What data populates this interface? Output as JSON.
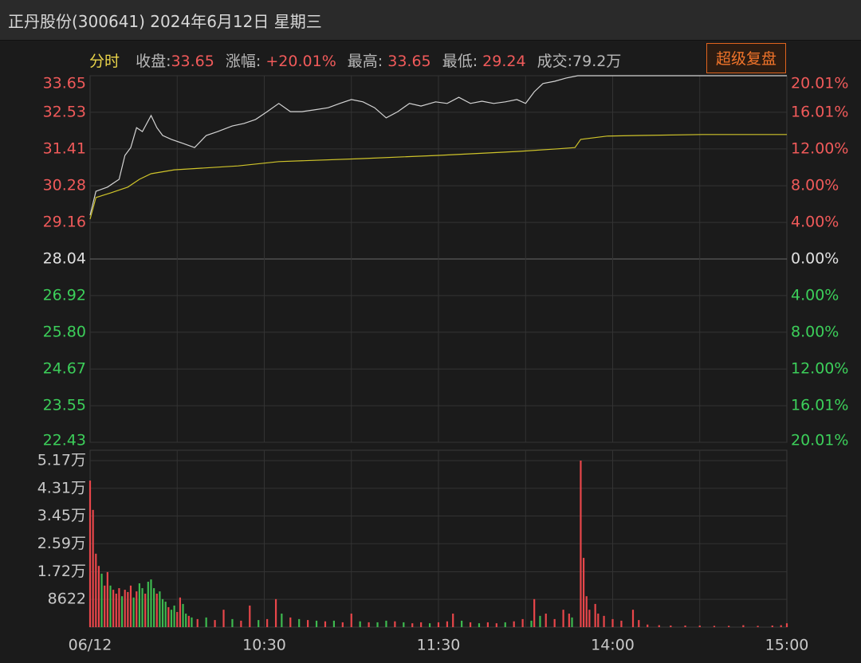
{
  "header": {
    "title": "正丹股份(300641) 2024年6月12日 星期三",
    "mode": "分时",
    "close_label": "收盘:",
    "close": 33.65,
    "change_label": "涨幅:",
    "change": "+20.01%",
    "high_label": "最高:",
    "high": 33.65,
    "low_label": "最低:",
    "low": 29.24,
    "volume_label": "成交:",
    "volume": "79.2万",
    "button": "超级复盘"
  },
  "chart_data": [
    {
      "type": "line",
      "xlim": [
        0,
        240
      ],
      "ylim": [
        22.43,
        33.65
      ],
      "yticks": [
        22.43,
        23.55,
        24.67,
        {
          "value": 25.8,
          "label": "25.80"
        },
        26.92,
        28.04,
        29.16,
        30.28,
        31.41,
        32.53,
        33.65
      ],
      "y2lim": [
        -20.01,
        20.01
      ],
      "y2ticks": [
        {
          "value": -20.01,
          "label": "20.01%"
        },
        {
          "value": -16.01,
          "label": "16.01%"
        },
        {
          "value": -12,
          "label": "12.00%"
        },
        {
          "value": -8,
          "label": "8.00%"
        },
        {
          "value": -4,
          "label": "4.00%"
        },
        {
          "value": 0,
          "label": "0.00%"
        },
        {
          "value": 4,
          "label": "4.00%"
        },
        {
          "value": 8,
          "label": "8.00%"
        },
        {
          "value": 12,
          "label": "12.00%"
        },
        {
          "value": 16.01,
          "label": "16.01%"
        },
        {
          "value": 20.01,
          "label": "20.01%"
        }
      ],
      "up_color": "#f05a5a",
      "down_color": "#3ccf5a",
      "flat_color": "#e0e0e0",
      "grid": true,
      "series": [
        {
          "color": "#d4d4d4",
          "x": [
            0,
            2,
            6,
            10,
            12,
            14,
            16,
            18,
            21,
            23,
            25,
            28,
            32,
            36,
            40,
            44,
            49,
            53,
            57,
            61,
            65,
            69,
            73,
            77,
            82,
            86,
            90,
            94,
            98,
            102,
            106,
            110,
            114,
            119,
            123,
            127,
            131,
            135,
            139,
            143,
            147,
            150,
            153,
            156,
            160,
            164,
            168,
            240
          ],
          "values": [
            29.38,
            30.11,
            30.24,
            30.48,
            31.21,
            31.45,
            32.06,
            31.94,
            32.43,
            32.06,
            31.82,
            31.7,
            31.58,
            31.45,
            31.82,
            31.94,
            32.11,
            32.19,
            32.31,
            32.55,
            32.8,
            32.55,
            32.55,
            32.6,
            32.67,
            32.8,
            32.92,
            32.85,
            32.67,
            32.36,
            32.55,
            32.8,
            32.72,
            32.85,
            32.8,
            32.99,
            32.8,
            32.87,
            32.8,
            32.85,
            32.92,
            32.8,
            33.16,
            33.41,
            33.48,
            33.58,
            33.65,
            33.65
          ]
        },
        {
          "color": "#cfc42a",
          "x": [
            0,
            2,
            7,
            13,
            17,
            21,
            29,
            51,
            65,
            93,
            120,
            147,
            161,
            167,
            169,
            178,
            189,
            211,
            240
          ],
          "values": [
            29.26,
            29.92,
            30.06,
            30.24,
            30.48,
            30.65,
            30.77,
            30.89,
            31.02,
            31.11,
            31.21,
            31.33,
            31.41,
            31.45,
            31.7,
            31.8,
            31.82,
            31.85,
            31.85
          ]
        }
      ]
    },
    {
      "type": "bar",
      "xlim": [
        0,
        240
      ],
      "xticks": [
        {
          "value": 0,
          "label": "06/12"
        },
        {
          "value": 30,
          "label": null
        },
        {
          "value": 60,
          "label": "10:30"
        },
        {
          "value": 90,
          "label": null
        },
        {
          "value": 120,
          "label": "11:30"
        },
        {
          "value": 150,
          "label": null
        },
        {
          "value": 180,
          "label": "14:00"
        },
        {
          "value": 210,
          "label": null
        },
        {
          "value": 240,
          "label": "15:00"
        }
      ],
      "ylim": [
        0,
        51700
      ],
      "yticks": [
        8622,
        {
          "value": 17200,
          "label": "1.72万"
        },
        {
          "value": 25900,
          "label": "2.59万"
        },
        {
          "value": 34500,
          "label": "3.45万"
        },
        {
          "value": 43100,
          "label": "4.31万"
        },
        {
          "value": 51700,
          "label": "5.17万"
        }
      ],
      "grid": true,
      "palette": {
        "up": "#e8464a",
        "down": "#3db94f"
      },
      "x": [
        0,
        1,
        2,
        3,
        4,
        5,
        6,
        7,
        8,
        9,
        10,
        11,
        12,
        13,
        14,
        15,
        16,
        17,
        18,
        19,
        20,
        21,
        22,
        23,
        24,
        25,
        26,
        27,
        28,
        29,
        30,
        31,
        32,
        33,
        34,
        35,
        37,
        40,
        43,
        46,
        49,
        52,
        55,
        58,
        61,
        64,
        66,
        69,
        72,
        75,
        78,
        81,
        84,
        87,
        90,
        93,
        96,
        99,
        102,
        105,
        108,
        111,
        114,
        117,
        120,
        123,
        125,
        128,
        131,
        134,
        137,
        140,
        143,
        146,
        149,
        152,
        153,
        155,
        157,
        160,
        163,
        165,
        166,
        169,
        170,
        171,
        172,
        174,
        175,
        177,
        180,
        183,
        187,
        189,
        192,
        196,
        200,
        205,
        210,
        215,
        220,
        225,
        230,
        235,
        238,
        240
      ],
      "values": [
        45500,
        36400,
        22800,
        19000,
        16600,
        12900,
        17100,
        12900,
        11600,
        10400,
        12100,
        9600,
        11600,
        10900,
        12900,
        9200,
        11100,
        13600,
        12100,
        10400,
        14100,
        14800,
        12100,
        10400,
        11100,
        8700,
        7900,
        6200,
        5400,
        6700,
        4700,
        9200,
        7200,
        4200,
        3500,
        3000,
        2500,
        3000,
        2200,
        5400,
        2500,
        2000,
        6700,
        2200,
        2500,
        8700,
        4200,
        3000,
        2500,
        2200,
        2000,
        1800,
        2000,
        1500,
        4200,
        1800,
        1500,
        1500,
        2000,
        1800,
        1500,
        1200,
        1500,
        1200,
        1500,
        1800,
        4200,
        2000,
        1500,
        1200,
        1500,
        1200,
        1500,
        1800,
        2500,
        2000,
        8700,
        3500,
        4200,
        2500,
        5400,
        4200,
        3000,
        51700,
        21500,
        9600,
        5400,
        7200,
        4200,
        3500,
        2500,
        2000,
        5400,
        2200,
        800,
        600,
        500,
        500,
        500,
        400,
        400,
        600,
        400,
        500,
        600,
        1200
      ],
      "directions": [
        "up",
        "up",
        "up",
        "up",
        "down",
        "up",
        "up",
        "down",
        "up",
        "up",
        "up",
        "down",
        "up",
        "up",
        "up",
        "down",
        "up",
        "down",
        "down",
        "up",
        "down",
        "down",
        "down",
        "up",
        "down",
        "down",
        "down",
        "up",
        "down",
        "down",
        "up",
        "up",
        "down",
        "down",
        "up",
        "down",
        "up",
        "down",
        "up",
        "up",
        "down",
        "up",
        "up",
        "down",
        "up",
        "up",
        "down",
        "up",
        "down",
        "up",
        "down",
        "up",
        "down",
        "up",
        "up",
        "down",
        "up",
        "down",
        "down",
        "up",
        "down",
        "up",
        "up",
        "down",
        "up",
        "up",
        "up",
        "down",
        "up",
        "down",
        "up",
        "up",
        "down",
        "up",
        "up",
        "down",
        "up",
        "down",
        "up",
        "up",
        "up",
        "up",
        "down",
        "up",
        "up",
        "up",
        "up",
        "up",
        "up",
        "up",
        "up",
        "up",
        "up",
        "up",
        "up",
        "up",
        "up",
        "up",
        "up",
        "up",
        "up",
        "up",
        "up",
        "up",
        "up",
        "up"
      ]
    }
  ]
}
